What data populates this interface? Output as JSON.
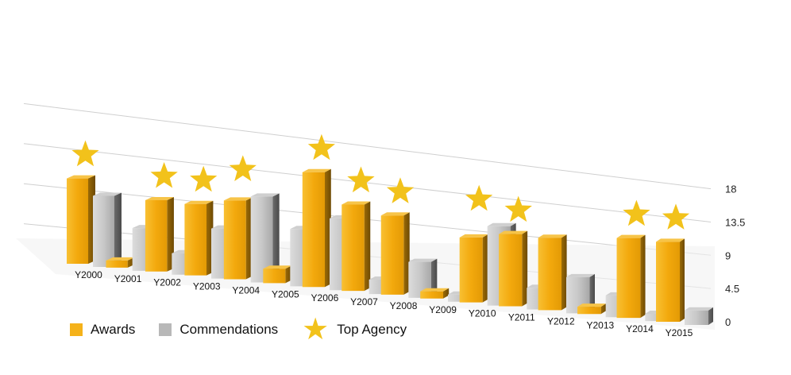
{
  "chart_data": {
    "type": "bar",
    "style": "3d-perspective",
    "categories": [
      "Y2000",
      "Y2001",
      "Y2002",
      "Y2003",
      "Y2004",
      "Y2005",
      "Y2006",
      "Y2007",
      "Y2008",
      "Y2009",
      "Y2010",
      "Y2011",
      "Y2012",
      "Y2013",
      "Y2014",
      "Y2015"
    ],
    "series": [
      {
        "name": "Awards",
        "color": "#f5b21a",
        "values": [
          12,
          1,
          10,
          10,
          11,
          2,
          16,
          12,
          11,
          1,
          9,
          10,
          10,
          1,
          11,
          11
        ]
      },
      {
        "name": "Commendations",
        "color": "#b8b8b8",
        "values": [
          10,
          6,
          3,
          7,
          12,
          8,
          10,
          2,
          5,
          1,
          11,
          3,
          5,
          3,
          1,
          2
        ]
      }
    ],
    "markers": {
      "name": "Top Agency",
      "icon": "star-icon",
      "color": "#f2c21b",
      "categories": [
        "Y2000",
        "Y2002",
        "Y2003",
        "Y2004",
        "Y2006",
        "Y2007",
        "Y2008",
        "Y2010",
        "Y2011",
        "Y2014",
        "Y2015"
      ]
    },
    "y_axis": {
      "position": "right",
      "ticks": [
        "0",
        "4.5",
        "9",
        "13.5",
        "18"
      ],
      "range": [
        0,
        18
      ]
    },
    "grid": true,
    "legend": {
      "position": "bottom-left"
    }
  }
}
